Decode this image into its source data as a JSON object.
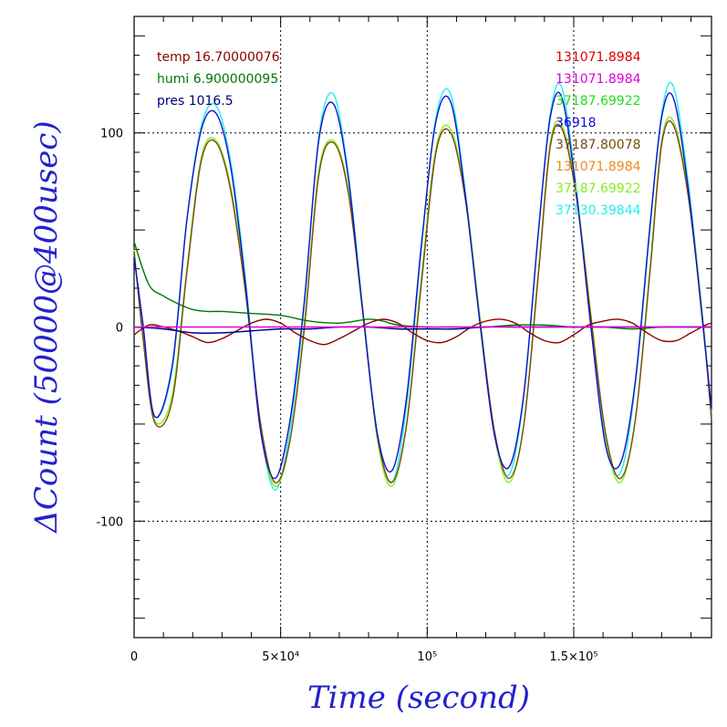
{
  "chart_data": {
    "type": "line",
    "xlabel": "Time (second)",
    "ylabel": "ΔCount (50000@400usec)",
    "xlim": [
      0,
      197000
    ],
    "ylim": [
      -160,
      160
    ],
    "grid": true,
    "x_ticks": [
      {
        "value": 0,
        "label": "0"
      },
      {
        "value": 50000,
        "label": "5×10⁴"
      },
      {
        "value": 100000,
        "label": "10⁵"
      },
      {
        "value": 150000,
        "label": "1.5×10⁵"
      }
    ],
    "y_ticks": [
      {
        "value": 100,
        "label": "100"
      },
      {
        "value": 0,
        "label": "0"
      },
      {
        "value": -100,
        "label": "-100"
      }
    ],
    "env_legend": [
      {
        "label": "temp 16.70000076",
        "color": "#8b0000"
      },
      {
        "label": "humi 6.900000095",
        "color": "#007700"
      },
      {
        "label": "pres 1016.5",
        "color": "#000080"
      }
    ],
    "series_legend": [
      {
        "label": "131071.8984",
        "color": "#dd0000"
      },
      {
        "label": "131071.8984",
        "color": "#dd00dd"
      },
      {
        "label": "37187.69922",
        "color": "#22dd22"
      },
      {
        "label": "36918",
        "color": "#1111cc"
      },
      {
        "label": "37187.80078",
        "color": "#7a4a10"
      },
      {
        "label": "131071.8984",
        "color": "#ee8822"
      },
      {
        "label": "37187.69922",
        "color": "#88ee22"
      },
      {
        "label": "37130.39844",
        "color": "#22eeee"
      }
    ],
    "series": [
      {
        "name": "",
        "color": "#22eeee",
        "x": [
          0,
          3000,
          7000,
          13000,
          18000,
          23000,
          28000,
          33000,
          38000,
          43000,
          48000,
          53000,
          58000,
          63000,
          68000,
          73000,
          78000,
          83000,
          88000,
          93000,
          98000,
          103000,
          108000,
          113000,
          118000,
          123000,
          128000,
          133000,
          138000,
          142000,
          146000,
          151000,
          156000,
          161000,
          166000,
          171000,
          176000,
          180000,
          184000,
          189000,
          194000,
          197000
        ],
        "y": [
          38,
          0,
          -46,
          -22,
          55,
          104,
          114,
          85,
          25,
          -50,
          -84,
          -55,
          10,
          98,
          120,
          80,
          10,
          -55,
          -80,
          -40,
          40,
          108,
          120,
          70,
          5,
          -55,
          -76,
          -35,
          50,
          110,
          123,
          70,
          0,
          -60,
          -75,
          -30,
          50,
          110,
          124,
          75,
          5,
          -45
        ]
      },
      {
        "name": "",
        "color": "#88ee22",
        "x": [
          0,
          3000,
          7000,
          13000,
          18000,
          23000,
          28000,
          33000,
          38000,
          43000,
          48000,
          53000,
          58000,
          63000,
          68000,
          73000,
          78000,
          83000,
          88000,
          93000,
          98000,
          103000,
          108000,
          113000,
          118000,
          123000,
          128000,
          133000,
          138000,
          142000,
          146000,
          151000,
          156000,
          161000,
          166000,
          171000,
          176000,
          180000,
          184000,
          189000,
          194000,
          197000
        ],
        "y": [
          40,
          -5,
          -48,
          -35,
          30,
          88,
          96,
          72,
          20,
          -50,
          -82,
          -60,
          0,
          80,
          96,
          72,
          10,
          -58,
          -82,
          -50,
          25,
          92,
          102,
          68,
          5,
          -56,
          -80,
          -50,
          30,
          95,
          104,
          68,
          5,
          -58,
          -80,
          -48,
          30,
          96,
          106,
          70,
          5,
          -48
        ]
      },
      {
        "name": "",
        "color": "#7a4a10",
        "x": [
          0,
          3000,
          7000,
          13000,
          18000,
          23000,
          28000,
          33000,
          38000,
          43000,
          48000,
          53000,
          58000,
          63000,
          68000,
          73000,
          78000,
          83000,
          88000,
          93000,
          98000,
          103000,
          108000,
          113000,
          118000,
          123000,
          128000,
          133000,
          138000,
          142000,
          146000,
          151000,
          156000,
          161000,
          166000,
          171000,
          176000,
          180000,
          184000,
          189000,
          194000,
          197000
        ],
        "y": [
          39,
          -5,
          -49,
          -38,
          28,
          86,
          95,
          70,
          18,
          -48,
          -80,
          -60,
          -2,
          78,
          95,
          70,
          8,
          -56,
          -80,
          -50,
          22,
          90,
          100,
          66,
          3,
          -54,
          -78,
          -50,
          28,
          93,
          102,
          66,
          3,
          -56,
          -78,
          -48,
          28,
          94,
          104,
          68,
          3,
          -48
        ]
      },
      {
        "name": "",
        "color": "#1111cc",
        "x": [
          0,
          3000,
          7000,
          13000,
          18000,
          23000,
          28000,
          33000,
          38000,
          43000,
          48000,
          53000,
          58000,
          63000,
          68000,
          73000,
          78000,
          83000,
          88000,
          93000,
          98000,
          103000,
          108000,
          113000,
          118000,
          123000,
          128000,
          133000,
          138000,
          142000,
          146000,
          151000,
          156000,
          161000,
          166000,
          171000,
          176000,
          180000,
          184000,
          189000,
          194000,
          197000
        ],
        "y": [
          36,
          2,
          -46,
          -20,
          55,
          102,
          110,
          82,
          22,
          -52,
          -78,
          -50,
          12,
          96,
          115,
          78,
          8,
          -55,
          -74,
          -36,
          42,
          106,
          116,
          68,
          2,
          -56,
          -72,
          -34,
          50,
          108,
          118,
          68,
          -2,
          -62,
          -70,
          -28,
          52,
          108,
          118,
          72,
          2,
          -42
        ]
      },
      {
        "name": "",
        "color": "#007700",
        "x": [
          0,
          5000,
          10000,
          15000,
          20000,
          25000,
          30000,
          40000,
          50000,
          60000,
          70000,
          80000,
          85000,
          90000,
          100000,
          110000,
          120000,
          130000,
          140000,
          150000,
          160000,
          170000,
          180000,
          190000,
          197000
        ],
        "y": [
          44,
          22,
          16,
          12,
          9,
          8,
          8,
          7,
          6,
          3,
          2,
          4,
          3,
          1,
          0,
          0,
          0,
          1,
          1,
          0,
          0,
          -1,
          0,
          0,
          0
        ]
      },
      {
        "name": "",
        "color": "#8b0000",
        "x": [
          0,
          5000,
          10000,
          15000,
          20000,
          25000,
          30000,
          35000,
          40000,
          45000,
          50000,
          55000,
          60000,
          65000,
          70000,
          75000,
          80000,
          85000,
          90000,
          95000,
          100000,
          105000,
          110000,
          115000,
          120000,
          125000,
          130000,
          135000,
          140000,
          145000,
          150000,
          155000,
          160000,
          165000,
          170000,
          175000,
          180000,
          185000,
          190000,
          195000,
          197000
        ],
        "y": [
          -4,
          1,
          0,
          -2,
          -5,
          -8,
          -6,
          -2,
          2,
          4,
          2,
          -3,
          -7,
          -9,
          -6,
          -2,
          2,
          4,
          2,
          -3,
          -7,
          -8,
          -5,
          0,
          3,
          4,
          2,
          -3,
          -7,
          -8,
          -4,
          1,
          3,
          4,
          2,
          -3,
          -7,
          -7,
          -3,
          1,
          2
        ]
      },
      {
        "name": "",
        "color": "#000080",
        "x": [
          0,
          10000,
          20000,
          30000,
          40000,
          50000,
          60000,
          70000,
          80000,
          90000,
          100000,
          110000,
          120000,
          130000,
          140000,
          150000,
          160000,
          170000,
          180000,
          190000,
          197000
        ],
        "y": [
          0,
          -1,
          -3,
          -3,
          -2,
          -1,
          -1,
          0,
          0,
          -1,
          -1,
          -1,
          0,
          0,
          0,
          0,
          0,
          0,
          0,
          0,
          0
        ]
      },
      {
        "name": "",
        "color": "#dd00dd",
        "x": [
          0,
          197000
        ],
        "y": [
          0,
          0
        ]
      }
    ]
  }
}
